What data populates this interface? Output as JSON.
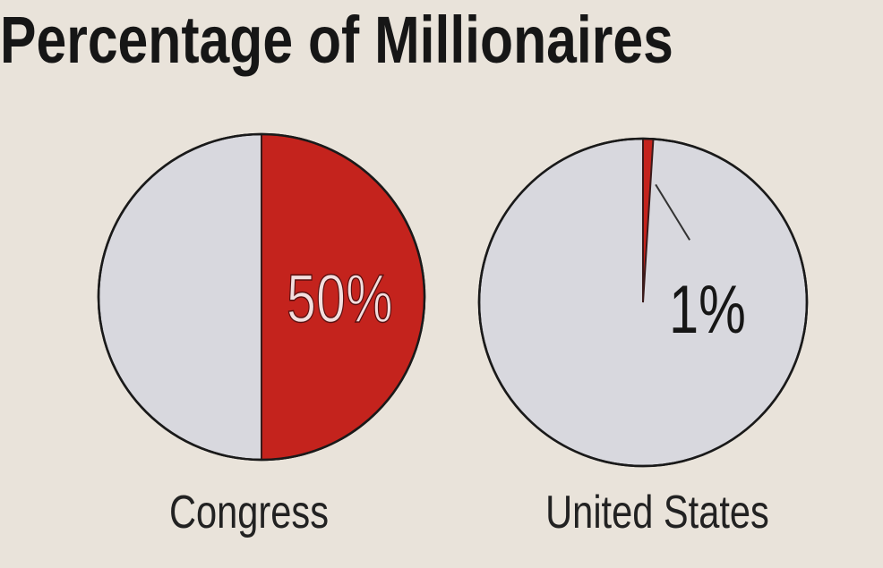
{
  "chart_data": {
    "type": "pie",
    "title": "Percentage of Millionaires",
    "categories": [
      "Congress",
      "United States"
    ],
    "values": [
      50,
      1
    ],
    "value_labels": [
      "50%",
      "1%"
    ],
    "color": "#c4231d",
    "rest_color": "#d8d8de"
  }
}
